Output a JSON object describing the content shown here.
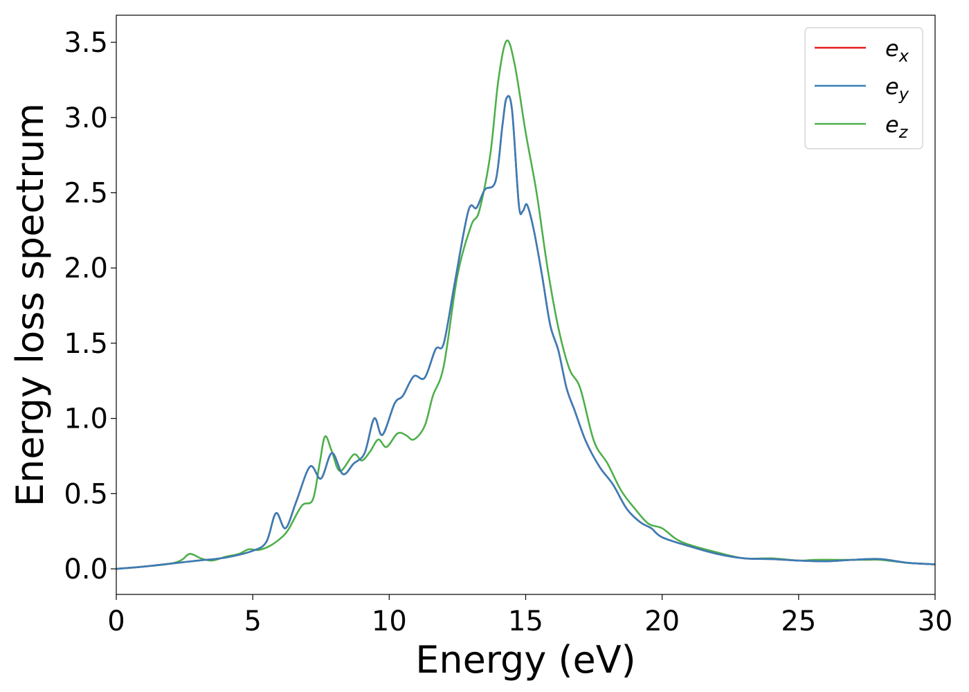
{
  "chart_data": {
    "type": "line",
    "title": "",
    "xlabel": "Energy (eV)",
    "ylabel": "Energy loss spectrum",
    "xlim": [
      0,
      30
    ],
    "ylim": [
      -0.17,
      3.68
    ],
    "xticks": [
      0,
      5,
      10,
      15,
      20,
      25,
      30
    ],
    "xtick_labels": [
      "0",
      "5",
      "10",
      "15",
      "20",
      "25",
      "30"
    ],
    "yticks": [
      0.0,
      0.5,
      1.0,
      1.5,
      2.0,
      2.5,
      3.0,
      3.5
    ],
    "ytick_labels": [
      "0.0",
      "0.5",
      "1.0",
      "1.5",
      "2.0",
      "2.5",
      "3.0",
      "3.5"
    ],
    "grid": false,
    "legend_position": "top-right",
    "series": [
      {
        "name": "e",
        "subscript": "x",
        "color": "#e41a1c",
        "points": [
          [
            0,
            0.0
          ],
          [
            1,
            0.015
          ],
          [
            2,
            0.035
          ],
          [
            3,
            0.055
          ],
          [
            4,
            0.075
          ],
          [
            5,
            0.12
          ],
          [
            5.5,
            0.18
          ],
          [
            5.85,
            0.37
          ],
          [
            6.2,
            0.27
          ],
          [
            6.6,
            0.45
          ],
          [
            7.1,
            0.68
          ],
          [
            7.5,
            0.6
          ],
          [
            7.9,
            0.77
          ],
          [
            8.3,
            0.63
          ],
          [
            8.7,
            0.7
          ],
          [
            9.1,
            0.77
          ],
          [
            9.45,
            1.0
          ],
          [
            9.75,
            0.89
          ],
          [
            10.2,
            1.1
          ],
          [
            10.5,
            1.15
          ],
          [
            10.9,
            1.28
          ],
          [
            11.3,
            1.27
          ],
          [
            11.7,
            1.46
          ],
          [
            12.0,
            1.5
          ],
          [
            12.4,
            1.9
          ],
          [
            12.9,
            2.38
          ],
          [
            13.2,
            2.4
          ],
          [
            13.5,
            2.52
          ],
          [
            13.9,
            2.58
          ],
          [
            14.15,
            2.95
          ],
          [
            14.3,
            3.13
          ],
          [
            14.5,
            3.05
          ],
          [
            14.75,
            2.42
          ],
          [
            14.9,
            2.38
          ],
          [
            15.05,
            2.42
          ],
          [
            15.3,
            2.25
          ],
          [
            15.6,
            1.95
          ],
          [
            15.9,
            1.62
          ],
          [
            16.2,
            1.45
          ],
          [
            16.5,
            1.2
          ],
          [
            16.8,
            1.05
          ],
          [
            17.2,
            0.85
          ],
          [
            17.7,
            0.68
          ],
          [
            18.2,
            0.56
          ],
          [
            18.7,
            0.4
          ],
          [
            19.2,
            0.31
          ],
          [
            19.6,
            0.27
          ],
          [
            20,
            0.21
          ],
          [
            21,
            0.15
          ],
          [
            22,
            0.1
          ],
          [
            23,
            0.07
          ],
          [
            24,
            0.065
          ],
          [
            25,
            0.055
          ],
          [
            26,
            0.05
          ],
          [
            27,
            0.06
          ],
          [
            28,
            0.065
          ],
          [
            29,
            0.04
          ],
          [
            30,
            0.03
          ]
        ]
      },
      {
        "name": "e",
        "subscript": "y",
        "color": "#377eb8",
        "points": [
          [
            0,
            0.0
          ],
          [
            1,
            0.015
          ],
          [
            2,
            0.035
          ],
          [
            3,
            0.055
          ],
          [
            4,
            0.075
          ],
          [
            5,
            0.12
          ],
          [
            5.5,
            0.18
          ],
          [
            5.85,
            0.37
          ],
          [
            6.2,
            0.27
          ],
          [
            6.6,
            0.45
          ],
          [
            7.1,
            0.68
          ],
          [
            7.5,
            0.6
          ],
          [
            7.9,
            0.77
          ],
          [
            8.3,
            0.63
          ],
          [
            8.7,
            0.7
          ],
          [
            9.1,
            0.77
          ],
          [
            9.45,
            1.0
          ],
          [
            9.75,
            0.89
          ],
          [
            10.2,
            1.1
          ],
          [
            10.5,
            1.15
          ],
          [
            10.9,
            1.28
          ],
          [
            11.3,
            1.27
          ],
          [
            11.7,
            1.46
          ],
          [
            12.0,
            1.5
          ],
          [
            12.4,
            1.9
          ],
          [
            12.9,
            2.38
          ],
          [
            13.2,
            2.4
          ],
          [
            13.5,
            2.52
          ],
          [
            13.9,
            2.58
          ],
          [
            14.15,
            2.95
          ],
          [
            14.3,
            3.13
          ],
          [
            14.5,
            3.05
          ],
          [
            14.75,
            2.42
          ],
          [
            14.9,
            2.38
          ],
          [
            15.05,
            2.42
          ],
          [
            15.3,
            2.25
          ],
          [
            15.6,
            1.95
          ],
          [
            15.9,
            1.62
          ],
          [
            16.2,
            1.45
          ],
          [
            16.5,
            1.2
          ],
          [
            16.8,
            1.05
          ],
          [
            17.2,
            0.85
          ],
          [
            17.7,
            0.68
          ],
          [
            18.2,
            0.56
          ],
          [
            18.7,
            0.4
          ],
          [
            19.2,
            0.31
          ],
          [
            19.6,
            0.27
          ],
          [
            20,
            0.21
          ],
          [
            21,
            0.15
          ],
          [
            22,
            0.1
          ],
          [
            23,
            0.07
          ],
          [
            24,
            0.065
          ],
          [
            25,
            0.055
          ],
          [
            26,
            0.05
          ],
          [
            27,
            0.06
          ],
          [
            28,
            0.065
          ],
          [
            29,
            0.04
          ],
          [
            30,
            0.03
          ]
        ]
      },
      {
        "name": "e",
        "subscript": "z",
        "color": "#4daf4a",
        "points": [
          [
            0,
            0.0
          ],
          [
            1,
            0.015
          ],
          [
            2,
            0.035
          ],
          [
            2.4,
            0.06
          ],
          [
            2.7,
            0.1
          ],
          [
            3.1,
            0.07
          ],
          [
            3.5,
            0.055
          ],
          [
            4.0,
            0.08
          ],
          [
            4.5,
            0.1
          ],
          [
            4.85,
            0.13
          ],
          [
            5.2,
            0.125
          ],
          [
            5.6,
            0.15
          ],
          [
            6.0,
            0.2
          ],
          [
            6.3,
            0.26
          ],
          [
            6.8,
            0.42
          ],
          [
            7.2,
            0.46
          ],
          [
            7.45,
            0.7
          ],
          [
            7.65,
            0.88
          ],
          [
            7.9,
            0.78
          ],
          [
            8.2,
            0.65
          ],
          [
            8.7,
            0.76
          ],
          [
            9.0,
            0.72
          ],
          [
            9.3,
            0.78
          ],
          [
            9.6,
            0.86
          ],
          [
            9.9,
            0.81
          ],
          [
            10.3,
            0.9
          ],
          [
            10.6,
            0.89
          ],
          [
            10.9,
            0.86
          ],
          [
            11.3,
            0.95
          ],
          [
            11.6,
            1.15
          ],
          [
            12.0,
            1.35
          ],
          [
            12.5,
            1.95
          ],
          [
            13.0,
            2.28
          ],
          [
            13.3,
            2.38
          ],
          [
            13.7,
            2.75
          ],
          [
            14.0,
            3.25
          ],
          [
            14.3,
            3.51
          ],
          [
            14.6,
            3.35
          ],
          [
            15.0,
            2.9
          ],
          [
            15.4,
            2.5
          ],
          [
            15.8,
            2.0
          ],
          [
            16.2,
            1.6
          ],
          [
            16.6,
            1.33
          ],
          [
            17.0,
            1.2
          ],
          [
            17.5,
            0.85
          ],
          [
            18.0,
            0.7
          ],
          [
            18.5,
            0.52
          ],
          [
            19.0,
            0.4
          ],
          [
            19.5,
            0.3
          ],
          [
            20.0,
            0.27
          ],
          [
            20.5,
            0.2
          ],
          [
            21,
            0.16
          ],
          [
            22,
            0.11
          ],
          [
            23,
            0.07
          ],
          [
            24,
            0.07
          ],
          [
            25,
            0.055
          ],
          [
            25.6,
            0.06
          ],
          [
            26.5,
            0.06
          ],
          [
            27.5,
            0.06
          ],
          [
            28,
            0.06
          ],
          [
            29,
            0.04
          ],
          [
            30,
            0.03
          ]
        ]
      }
    ]
  }
}
